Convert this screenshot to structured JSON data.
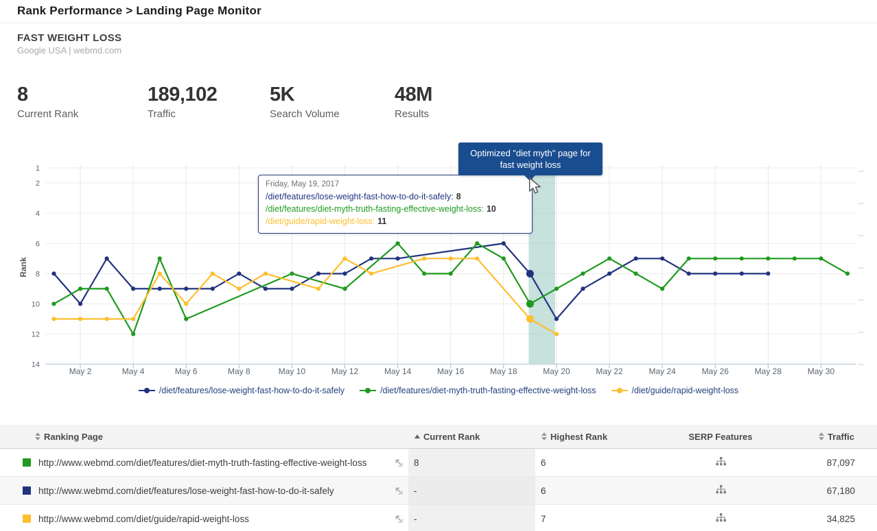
{
  "header": {
    "title": "Rank Performance > Landing Page Monitor"
  },
  "keyword": {
    "name": "FAST WEIGHT LOSS",
    "subtitle": "Google USA | webmd.com"
  },
  "stats": [
    {
      "value": "8",
      "label": "Current Rank"
    },
    {
      "value": "189,102",
      "label": "Traffic"
    },
    {
      "value": "5K",
      "label": "Search Volume"
    },
    {
      "value": "48M",
      "label": "Results"
    }
  ],
  "annotation": {
    "line1": "Optimized \"diet myth\" page for",
    "line2": "fast weight loss",
    "color": "#1a4d8f"
  },
  "tooltip": {
    "date": "Friday, May 19, 2017",
    "rows": [
      {
        "label": "/diet/features/lose-weight-fast-how-to-do-it-safely:",
        "value": "8",
        "color": "#22337e"
      },
      {
        "label": "/diet/features/diet-myth-truth-fasting-effective-weight-loss:",
        "value": "10",
        "color": "#1f9a1f"
      },
      {
        "label": "/diet/guide/rapid-weight-loss:",
        "value": "11",
        "color": "#fdbe2f"
      }
    ]
  },
  "chart_data": {
    "type": "line",
    "title": "",
    "ylabel": "Rank",
    "y_inverted": true,
    "y_ticks": [
      1,
      2,
      4,
      6,
      8,
      10,
      12,
      14
    ],
    "ylim": [
      1,
      14
    ],
    "grid": true,
    "legend_position": "bottom",
    "days": [
      "May 1",
      "May 2",
      "May 3",
      "May 4",
      "May 5",
      "May 6",
      "May 7",
      "May 8",
      "May 9",
      "May 10",
      "May 11",
      "May 12",
      "May 13",
      "May 14",
      "May 15",
      "May 16",
      "May 17",
      "May 18",
      "May 19",
      "May 20",
      "May 21",
      "May 22",
      "May 23",
      "May 24",
      "May 25",
      "May 26",
      "May 27",
      "May 28",
      "May 29",
      "May 30",
      "May 31"
    ],
    "x_tick_labels": [
      "May 2",
      "May 4",
      "May 6",
      "May 8",
      "May 10",
      "May 12",
      "May 14",
      "May 16",
      "May 18",
      "May 20",
      "May 22",
      "May 24",
      "May 26",
      "May 28",
      "May 30"
    ],
    "hover_index": 18,
    "hover_date": "Friday, May 19, 2017",
    "highlight_band": {
      "from": "May 19",
      "to": "May 20",
      "color": "#8fc4bb",
      "opacity": 0.5
    },
    "series": [
      {
        "name": "/diet/features/lose-weight-fast-how-to-do-it-safely",
        "color": "#22337e",
        "values": [
          8,
          10,
          7,
          9,
          9,
          9,
          9,
          8,
          9,
          9,
          8,
          8,
          7,
          7,
          null,
          null,
          null,
          6,
          8,
          11,
          9,
          8,
          7,
          7,
          8,
          8,
          8,
          8,
          null,
          null,
          null
        ]
      },
      {
        "name": "/diet/features/diet-myth-truth-fasting-effective-weight-loss",
        "color": "#1f9a1f",
        "values": [
          10,
          9,
          9,
          12,
          7,
          11,
          null,
          null,
          null,
          8,
          null,
          9,
          null,
          6,
          8,
          8,
          6,
          7,
          10,
          9,
          8,
          7,
          8,
          9,
          7,
          7,
          7,
          7,
          7,
          7,
          8
        ]
      },
      {
        "name": "/diet/guide/rapid-weight-loss",
        "color": "#fdbe2f",
        "values": [
          11,
          11,
          11,
          11,
          8,
          10,
          8,
          9,
          8,
          null,
          9,
          7,
          8,
          null,
          7,
          7,
          7,
          null,
          11,
          12,
          null,
          null,
          null,
          null,
          null,
          null,
          null,
          null,
          null,
          null,
          null
        ]
      }
    ]
  },
  "legend": [
    {
      "label": "/diet/features/lose-weight-fast-how-to-do-it-safely",
      "color": "#22337e"
    },
    {
      "label": "/diet/features/diet-myth-truth-fasting-effective-weight-loss",
      "color": "#1f9a1f"
    },
    {
      "label": "/diet/guide/rapid-weight-loss",
      "color": "#fdbe2f"
    }
  ],
  "table": {
    "columns": [
      "Ranking Page",
      "Current Rank",
      "Highest Rank",
      "SERP Features",
      "Traffic"
    ],
    "rows": [
      {
        "color": "#1f9a1f",
        "url": "http://www.webmd.com/diet/features/diet-myth-truth-fasting-effective-weight-loss",
        "current_rank": "8",
        "highest_rank": "6",
        "traffic": "87,097"
      },
      {
        "color": "#22337e",
        "url": "http://www.webmd.com/diet/features/lose-weight-fast-how-to-do-it-safely",
        "current_rank": "-",
        "highest_rank": "6",
        "traffic": "67,180"
      },
      {
        "color": "#fdbe2f",
        "url": "http://www.webmd.com/diet/guide/rapid-weight-loss",
        "current_rank": "-",
        "highest_rank": "7",
        "traffic": "34,825"
      }
    ]
  },
  "icons": {
    "sort_both": "sort-updown-icon",
    "sort_asc": "sort-up-icon",
    "external": "external-link-icon",
    "serp": "sitemap-icon",
    "cursor": "mouse-cursor-icon",
    "legend_marker": "series-marker-icon"
  }
}
